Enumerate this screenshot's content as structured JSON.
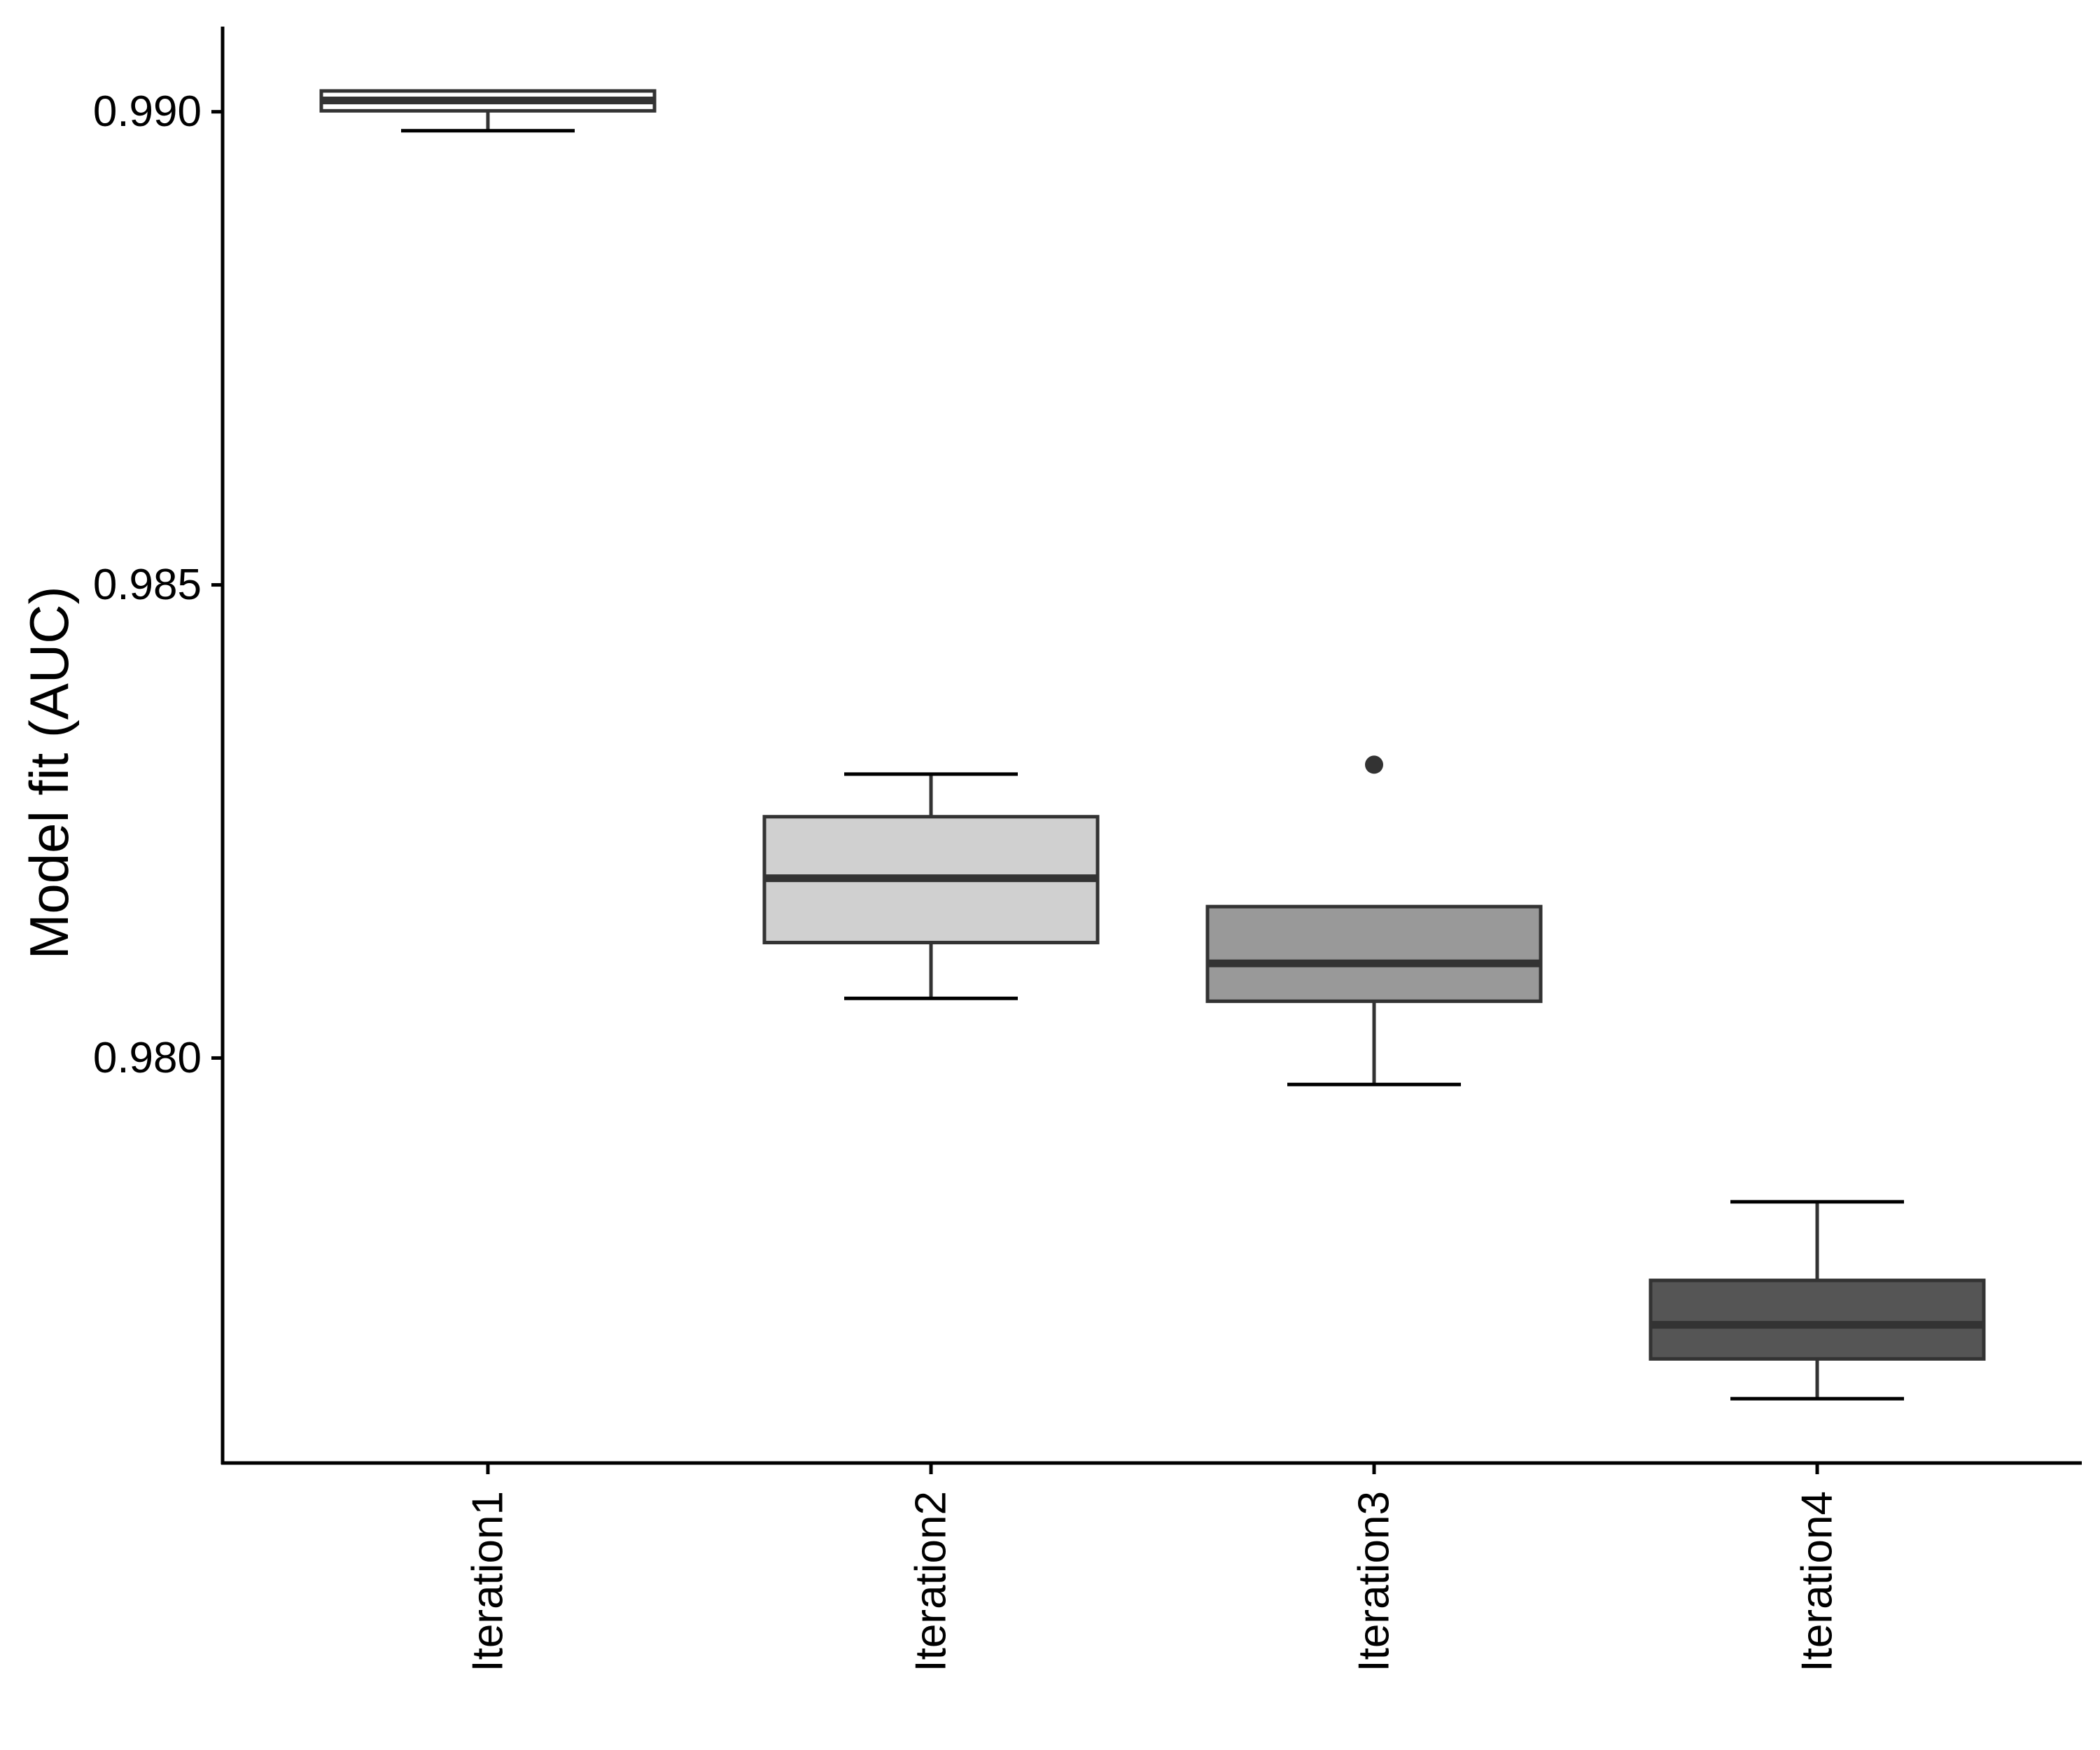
{
  "chart_data": {
    "type": "box",
    "categories": [
      "Iteration1",
      "Iteration2",
      "Iteration3",
      "Iteration4"
    ],
    "boxes": [
      {
        "name": "Iteration1",
        "fill": "#ffffff",
        "whisker_low": 0.9898,
        "q1": 0.99001,
        "median": 0.99012,
        "q3": 0.99022,
        "whisker_high": 0.99022,
        "outliers": []
      },
      {
        "name": "Iteration2",
        "fill": "#d0d0d0",
        "whisker_low": 0.98063,
        "q1": 0.98122,
        "median": 0.9819,
        "q3": 0.98255,
        "whisker_high": 0.983,
        "outliers": []
      },
      {
        "name": "Iteration3",
        "fill": "#999999",
        "whisker_low": 0.97972,
        "q1": 0.9806,
        "median": 0.981,
        "q3": 0.9816,
        "whisker_high": 0.9816,
        "outliers": [
          0.9831
        ]
      },
      {
        "name": "Iteration4",
        "fill": "#555555",
        "whisker_low": 0.9764,
        "q1": 0.97682,
        "median": 0.97718,
        "q3": 0.97765,
        "whisker_high": 0.97848,
        "outliers": []
      }
    ],
    "title": "",
    "xlabel": "",
    "ylabel": "Model fit (AUC)",
    "yticks": [
      "0.980",
      "0.985",
      "0.990"
    ],
    "ytick_values": [
      0.98,
      0.985,
      0.99
    ],
    "ylim": [
      0.97572,
      0.9909
    ],
    "grid": false,
    "legend": "none",
    "colors": {
      "box_outline": "#333333",
      "axis": "#000000"
    }
  }
}
